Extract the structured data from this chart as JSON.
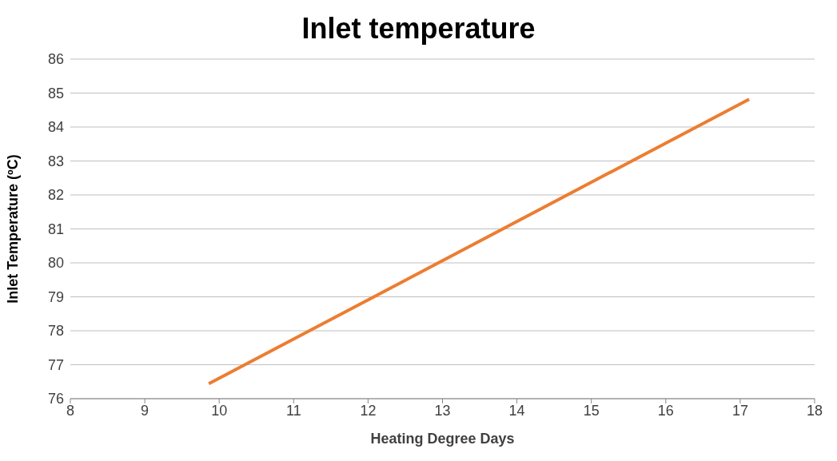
{
  "chart_data": {
    "type": "line",
    "title": "Inlet temperature",
    "xlabel": "Heating Degree Days",
    "ylabel": "Inlet Temperature (ºC)",
    "x": [
      9.86,
      17.12
    ],
    "series": [
      {
        "color": "#ed7d31",
        "values": [
          76.44,
          84.82
        ]
      }
    ],
    "xlim": [
      8,
      18
    ],
    "xticks": [
      8,
      9,
      10,
      11,
      12,
      13,
      14,
      15,
      16,
      17,
      18
    ],
    "ylim": [
      76,
      86
    ],
    "yticks": [
      76,
      77,
      78,
      79,
      80,
      81,
      82,
      83,
      84,
      85,
      86
    ],
    "grid": "y",
    "legend": false,
    "marker": "none",
    "line_style": "solid"
  }
}
